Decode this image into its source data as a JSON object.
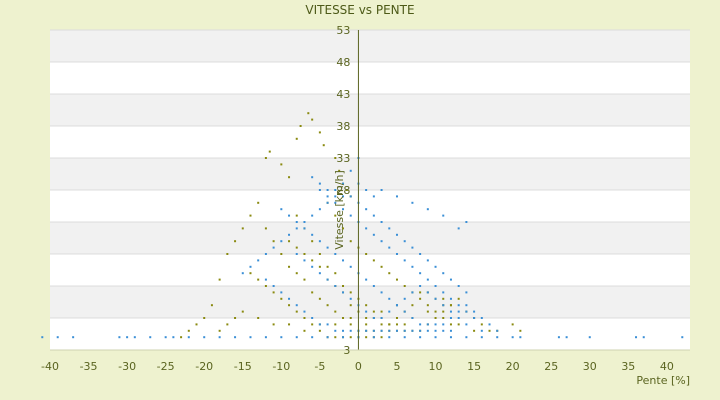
{
  "chart_data": {
    "type": "scatter",
    "title": "VITESSE vs PENTE",
    "xlabel": "Pente [%]",
    "ylabel": "Vitesse [km/h]",
    "xlim": [
      -40,
      43
    ],
    "ylim": [
      3,
      53
    ],
    "x_ticks": [
      -40,
      -35,
      -30,
      -25,
      -20,
      -15,
      -10,
      -5,
      0,
      5,
      10,
      15,
      20,
      25,
      30,
      35,
      40
    ],
    "y_ticks": [
      3,
      8,
      13,
      18,
      23,
      28,
      33,
      38,
      43,
      48,
      53
    ],
    "y_tick_labels": [
      "3",
      "",
      "",
      "",
      "",
      "28",
      "33",
      "38",
      "43",
      "48",
      "53"
    ],
    "grid": "horizontal alternating bands",
    "legend": "none",
    "series": [
      {
        "color": "#8a8a10",
        "points": [
          [
            -12,
            33
          ],
          [
            -11.5,
            34
          ],
          [
            -8,
            36
          ],
          [
            -7.5,
            38
          ],
          [
            -6.5,
            40
          ],
          [
            -6,
            39
          ],
          [
            -5,
            37
          ],
          [
            -4.5,
            35
          ],
          [
            -3,
            33
          ],
          [
            -2.5,
            31
          ],
          [
            -2,
            29
          ],
          [
            -1.5,
            28
          ],
          [
            -1,
            27
          ],
          [
            -10,
            32
          ],
          [
            -9,
            30
          ],
          [
            -13,
            26
          ],
          [
            -14,
            24
          ],
          [
            -15,
            22
          ],
          [
            -16,
            20
          ],
          [
            -17,
            18
          ],
          [
            -18,
            14
          ],
          [
            -19,
            10
          ],
          [
            -20,
            8
          ],
          [
            -21,
            7
          ],
          [
            -22,
            6
          ],
          [
            -23,
            5
          ],
          [
            -12,
            22
          ],
          [
            -11,
            20
          ],
          [
            -10,
            18
          ],
          [
            -9,
            16
          ],
          [
            -8,
            15
          ],
          [
            -7,
            14
          ],
          [
            -6,
            12
          ],
          [
            -5,
            11
          ],
          [
            -4,
            10
          ],
          [
            -3,
            9
          ],
          [
            -2,
            8
          ],
          [
            -1,
            7
          ],
          [
            0,
            6
          ],
          [
            1,
            6
          ],
          [
            2,
            6
          ],
          [
            3,
            6
          ],
          [
            4,
            6
          ],
          [
            5,
            6
          ],
          [
            6,
            6
          ],
          [
            7,
            6
          ],
          [
            8,
            6
          ],
          [
            9,
            7
          ],
          [
            10,
            8
          ],
          [
            11,
            9
          ],
          [
            12,
            10
          ],
          [
            13,
            11
          ],
          [
            14,
            9
          ],
          [
            15,
            8
          ],
          [
            16,
            7
          ],
          [
            18,
            6
          ],
          [
            20,
            7
          ],
          [
            21,
            6
          ],
          [
            -8,
            24
          ],
          [
            -7,
            22
          ],
          [
            -6,
            20
          ],
          [
            -5,
            18
          ],
          [
            -4,
            16
          ],
          [
            -3,
            15
          ],
          [
            -2,
            13
          ],
          [
            -1,
            12
          ],
          [
            0,
            11
          ],
          [
            1,
            10
          ],
          [
            2,
            9
          ],
          [
            3,
            8
          ],
          [
            4,
            7
          ],
          [
            5,
            8
          ],
          [
            6,
            9
          ],
          [
            7,
            10
          ],
          [
            8,
            11
          ],
          [
            9,
            10
          ],
          [
            10,
            9
          ],
          [
            11,
            8
          ],
          [
            12,
            7
          ],
          [
            -14,
            15
          ],
          [
            -13,
            14
          ],
          [
            -12,
            13
          ],
          [
            -11,
            12
          ],
          [
            -10,
            11
          ],
          [
            -9,
            10
          ],
          [
            -8,
            9
          ],
          [
            -7,
            8
          ],
          [
            -6,
            7
          ],
          [
            -5,
            6
          ],
          [
            -4,
            5
          ],
          [
            -3,
            5
          ],
          [
            -2,
            5
          ],
          [
            -1,
            5
          ],
          [
            0,
            5
          ],
          [
            1,
            5
          ],
          [
            2,
            5
          ],
          [
            3,
            5
          ],
          [
            -4,
            26
          ],
          [
            -3,
            24
          ],
          [
            -2,
            22
          ],
          [
            -1,
            20
          ],
          [
            0,
            19
          ],
          [
            1,
            18
          ],
          [
            2,
            17
          ],
          [
            3,
            16
          ],
          [
            4,
            15
          ],
          [
            5,
            14
          ],
          [
            6,
            13
          ],
          [
            7,
            12
          ],
          [
            8,
            12
          ],
          [
            9,
            12
          ],
          [
            10,
            11
          ],
          [
            11,
            11
          ],
          [
            12,
            10
          ],
          [
            -9,
            20
          ],
          [
            -8,
            19
          ],
          [
            -7,
            18
          ],
          [
            -6,
            17
          ],
          [
            -5,
            16
          ],
          [
            -4,
            14
          ],
          [
            -3,
            13
          ],
          [
            -2,
            12
          ],
          [
            -1,
            10
          ],
          [
            0,
            9
          ],
          [
            1,
            8
          ],
          [
            2,
            8
          ],
          [
            3,
            7
          ],
          [
            4,
            7
          ],
          [
            5,
            7
          ],
          [
            6,
            7
          ],
          [
            -15,
            9
          ],
          [
            -16,
            8
          ],
          [
            -17,
            7
          ],
          [
            -18,
            6
          ],
          [
            -13,
            8
          ],
          [
            -11,
            7
          ],
          [
            -9,
            7
          ],
          [
            -7,
            6
          ],
          [
            -5,
            7
          ],
          [
            -3,
            7
          ],
          [
            -1,
            8
          ],
          [
            1,
            7
          ],
          [
            3,
            9
          ],
          [
            5,
            10
          ],
          [
            7,
            8
          ],
          [
            9,
            9
          ],
          [
            11,
            10
          ],
          [
            13,
            7
          ],
          [
            15,
            6
          ],
          [
            17,
            6
          ]
        ]
      },
      {
        "color": "#3a8fd6",
        "points": [
          [
            -41,
            5
          ],
          [
            -39,
            5
          ],
          [
            -37,
            5
          ],
          [
            -31,
            5
          ],
          [
            -30,
            5
          ],
          [
            -29,
            5
          ],
          [
            -27,
            5
          ],
          [
            -25,
            5
          ],
          [
            -24,
            5
          ],
          [
            -22,
            5
          ],
          [
            -20,
            5
          ],
          [
            -18,
            5
          ],
          [
            -16,
            5
          ],
          [
            -14,
            5
          ],
          [
            -12,
            5
          ],
          [
            -10,
            5
          ],
          [
            -8,
            5
          ],
          [
            -6,
            5
          ],
          [
            -4,
            5
          ],
          [
            -2,
            5
          ],
          [
            0,
            5
          ],
          [
            2,
            5
          ],
          [
            4,
            5
          ],
          [
            6,
            5
          ],
          [
            8,
            5
          ],
          [
            10,
            5
          ],
          [
            12,
            5
          ],
          [
            14,
            5
          ],
          [
            16,
            5
          ],
          [
            18,
            5
          ],
          [
            20,
            5
          ],
          [
            21,
            5
          ],
          [
            26,
            5
          ],
          [
            27,
            5
          ],
          [
            30,
            5
          ],
          [
            36,
            5
          ],
          [
            37,
            5
          ],
          [
            42,
            5
          ],
          [
            0,
            33
          ],
          [
            -1,
            31
          ],
          [
            -2,
            29
          ],
          [
            0,
            29
          ],
          [
            1,
            28
          ],
          [
            2,
            27
          ],
          [
            -3,
            27
          ],
          [
            -4,
            26
          ],
          [
            -5,
            25
          ],
          [
            -6,
            24
          ],
          [
            -7,
            23
          ],
          [
            -8,
            22
          ],
          [
            -9,
            21
          ],
          [
            -10,
            20
          ],
          [
            -11,
            19
          ],
          [
            -12,
            18
          ],
          [
            -13,
            17
          ],
          [
            -14,
            16
          ],
          [
            -15,
            15
          ],
          [
            -5,
            28
          ],
          [
            -4,
            27
          ],
          [
            -3,
            26
          ],
          [
            -2,
            25
          ],
          [
            -1,
            24
          ],
          [
            0,
            23
          ],
          [
            1,
            22
          ],
          [
            2,
            21
          ],
          [
            3,
            20
          ],
          [
            4,
            19
          ],
          [
            5,
            18
          ],
          [
            6,
            17
          ],
          [
            7,
            16
          ],
          [
            8,
            15
          ],
          [
            9,
            14
          ],
          [
            10,
            13
          ],
          [
            11,
            12
          ],
          [
            12,
            11
          ],
          [
            13,
            10
          ],
          [
            14,
            9
          ],
          [
            15,
            8
          ],
          [
            -6,
            30
          ],
          [
            -5,
            29
          ],
          [
            -4,
            28
          ],
          [
            -3,
            28
          ],
          [
            -2,
            27
          ],
          [
            -1,
            27
          ],
          [
            0,
            26
          ],
          [
            1,
            25
          ],
          [
            2,
            24
          ],
          [
            3,
            23
          ],
          [
            4,
            22
          ],
          [
            5,
            21
          ],
          [
            6,
            20
          ],
          [
            7,
            19
          ],
          [
            8,
            18
          ],
          [
            9,
            17
          ],
          [
            10,
            16
          ],
          [
            11,
            15
          ],
          [
            12,
            14
          ],
          [
            13,
            13
          ],
          [
            14,
            12
          ],
          [
            -8,
            18
          ],
          [
            -7,
            17
          ],
          [
            -6,
            16
          ],
          [
            -5,
            15
          ],
          [
            -4,
            14
          ],
          [
            -3,
            13
          ],
          [
            -2,
            12
          ],
          [
            -1,
            11
          ],
          [
            0,
            10
          ],
          [
            1,
            9
          ],
          [
            2,
            8
          ],
          [
            3,
            8
          ],
          [
            4,
            9
          ],
          [
            5,
            10
          ],
          [
            6,
            11
          ],
          [
            7,
            12
          ],
          [
            8,
            13
          ],
          [
            9,
            12
          ],
          [
            10,
            11
          ],
          [
            11,
            10
          ],
          [
            12,
            9
          ],
          [
            13,
            8
          ],
          [
            14,
            7
          ],
          [
            -10,
            25
          ],
          [
            -9,
            24
          ],
          [
            -8,
            23
          ],
          [
            -7,
            22
          ],
          [
            -6,
            21
          ],
          [
            -5,
            20
          ],
          [
            -4,
            19
          ],
          [
            -3,
            18
          ],
          [
            -2,
            17
          ],
          [
            -1,
            16
          ],
          [
            0,
            15
          ],
          [
            1,
            14
          ],
          [
            2,
            13
          ],
          [
            3,
            12
          ],
          [
            4,
            11
          ],
          [
            5,
            10
          ],
          [
            6,
            9
          ],
          [
            7,
            8
          ],
          [
            8,
            7
          ],
          [
            9,
            7
          ],
          [
            10,
            7
          ],
          [
            11,
            6
          ],
          [
            12,
            6
          ],
          [
            -12,
            14
          ],
          [
            -11,
            13
          ],
          [
            -10,
            12
          ],
          [
            -9,
            11
          ],
          [
            -8,
            10
          ],
          [
            -7,
            9
          ],
          [
            -6,
            8
          ],
          [
            -5,
            7
          ],
          [
            -4,
            7
          ],
          [
            -3,
            6
          ],
          [
            -2,
            6
          ],
          [
            -1,
            6
          ],
          [
            0,
            6
          ],
          [
            1,
            6
          ],
          [
            2,
            6
          ],
          [
            3,
            6
          ],
          [
            4,
            6
          ],
          [
            5,
            6
          ],
          [
            6,
            6
          ],
          [
            7,
            6
          ],
          [
            8,
            6
          ],
          [
            9,
            6
          ],
          [
            10,
            6
          ],
          [
            11,
            7
          ],
          [
            12,
            8
          ],
          [
            13,
            9
          ],
          [
            14,
            10
          ],
          [
            15,
            9
          ],
          [
            16,
            8
          ],
          [
            17,
            7
          ],
          [
            18,
            6
          ],
          [
            14,
            23
          ],
          [
            11,
            24
          ],
          [
            13,
            22
          ],
          [
            9,
            25
          ],
          [
            7,
            26
          ],
          [
            5,
            27
          ],
          [
            3,
            28
          ],
          [
            16,
            6
          ]
        ]
      }
    ]
  }
}
